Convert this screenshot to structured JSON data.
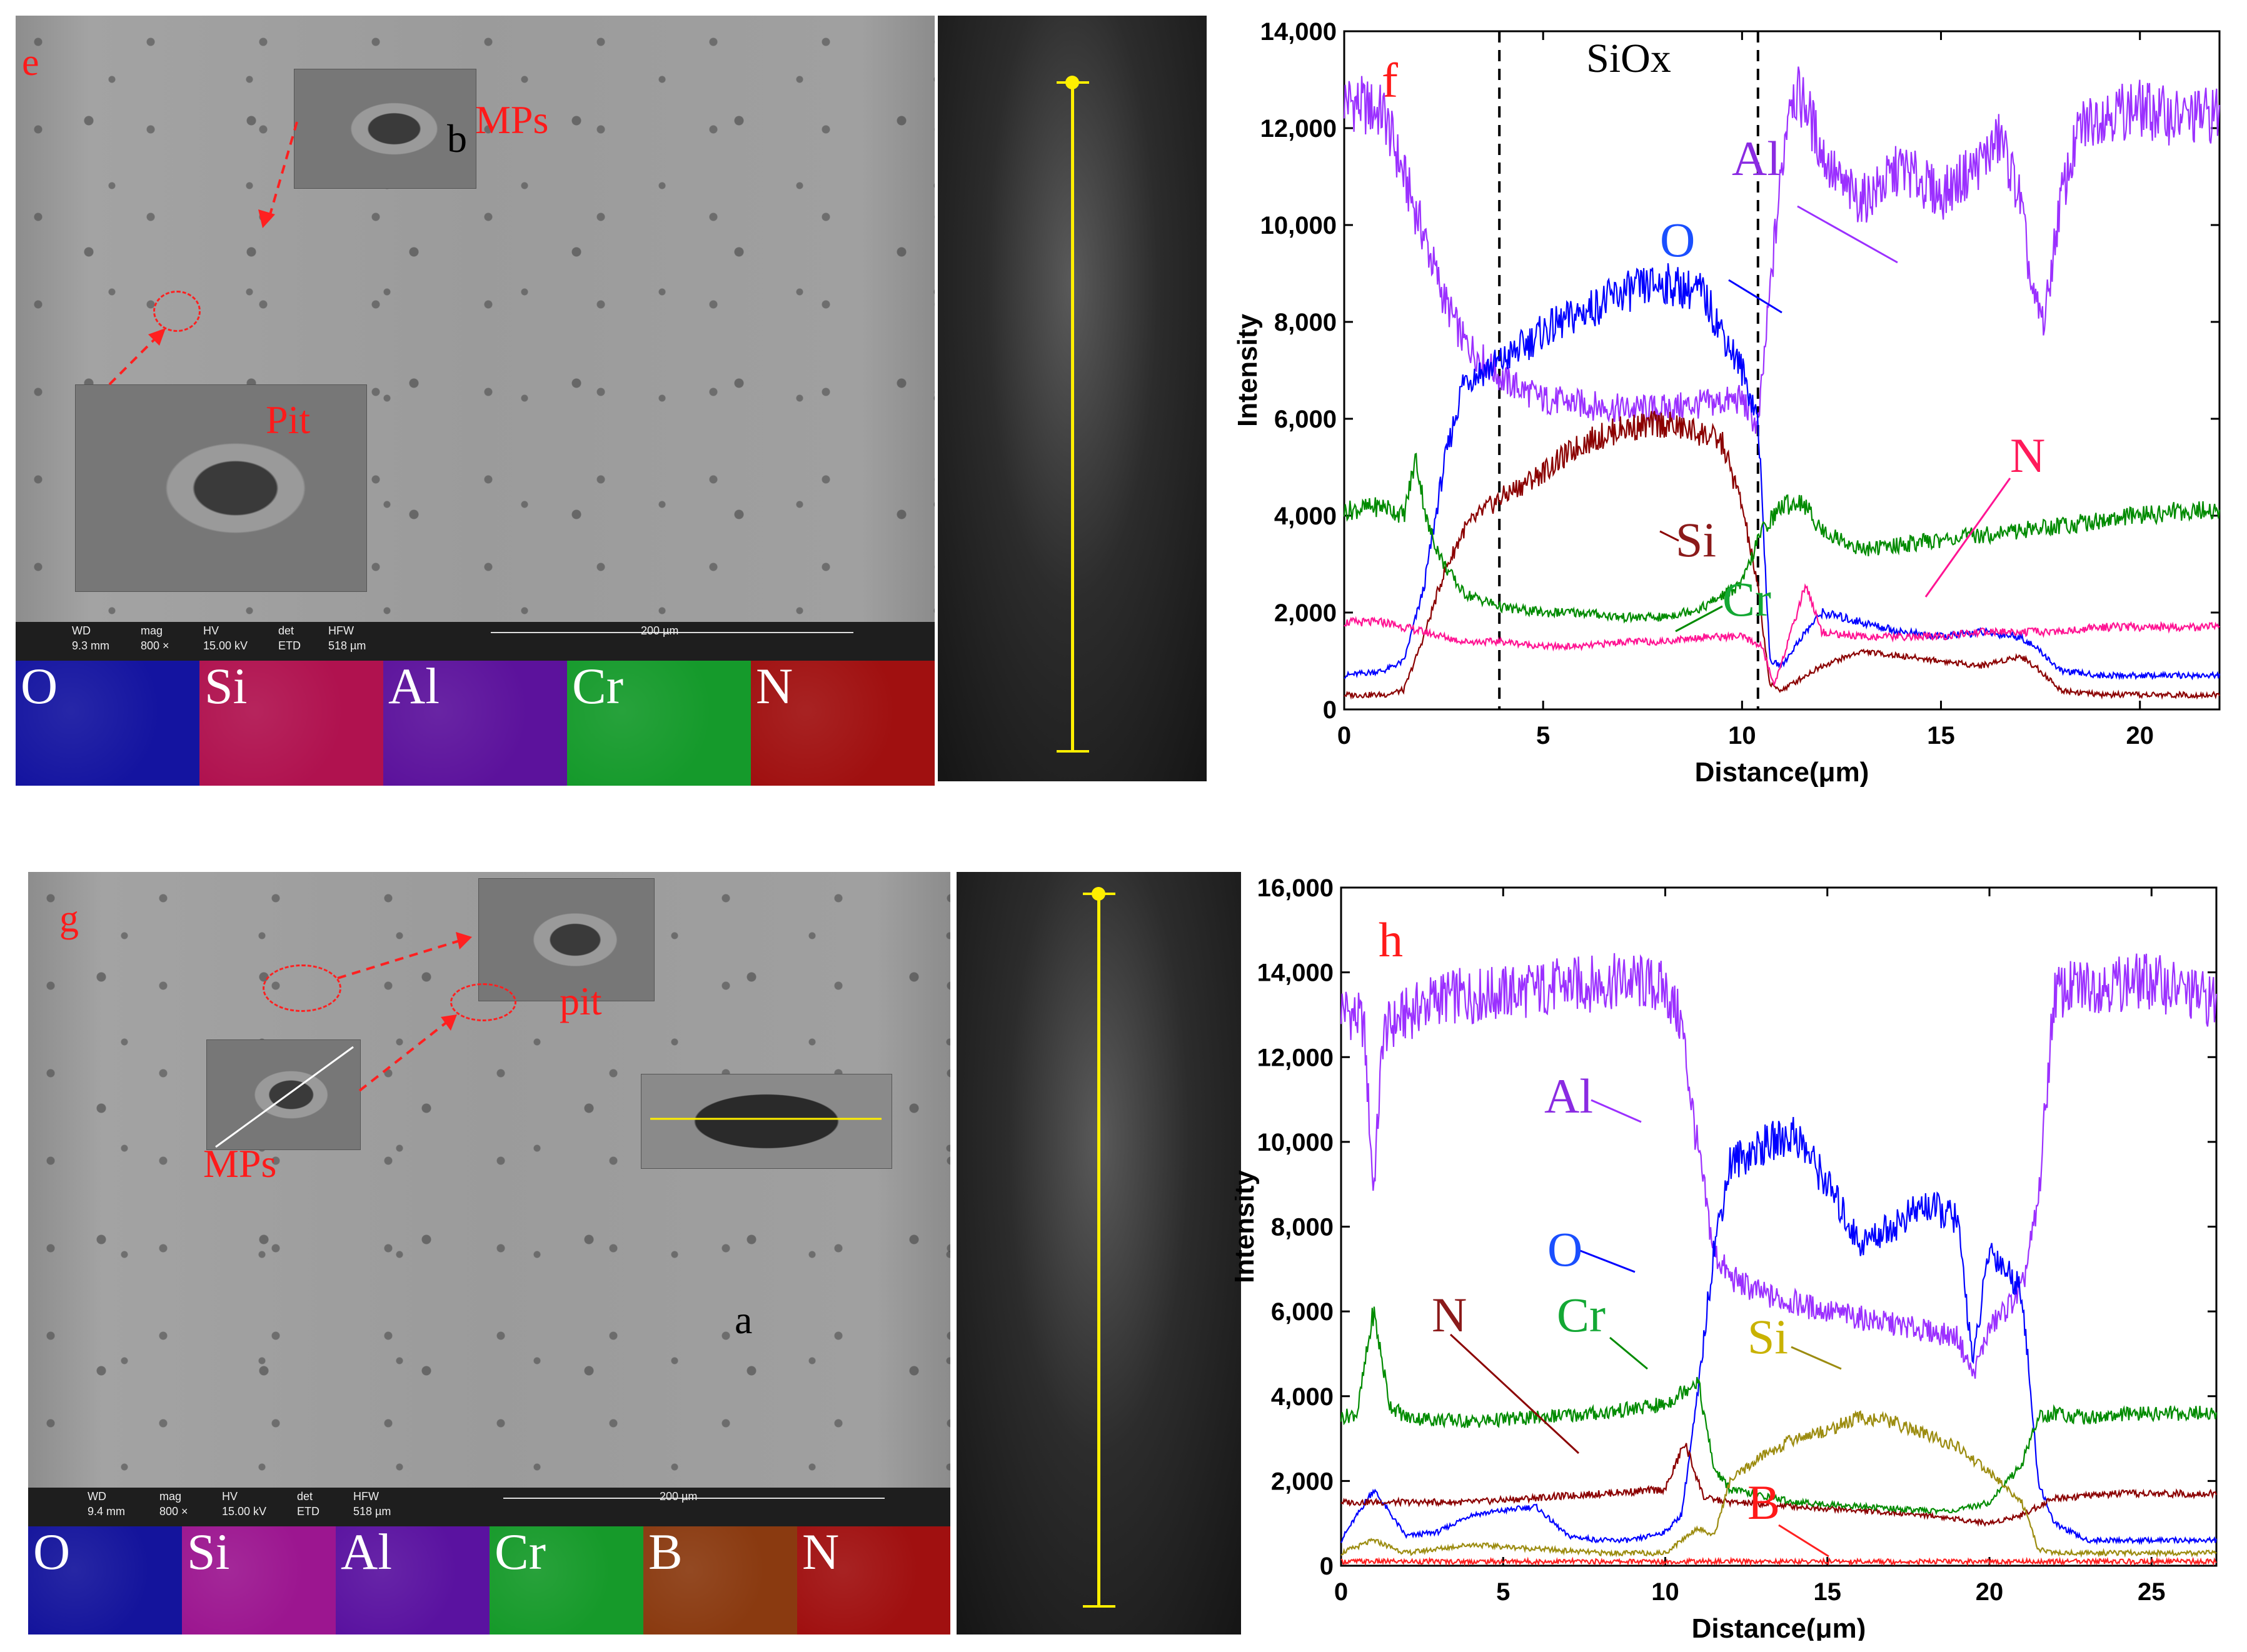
{
  "panel_e": {
    "label": "e",
    "mps_label": "MPs",
    "b_label": "b",
    "pit_label": "Pit",
    "infobar": {
      "wd_title": "WD",
      "wd_value": "9.3 mm",
      "mag_title": "mag",
      "mag_value": "800 ×",
      "hv_title": "HV",
      "hv_value": "15.00 kV",
      "det_title": "det",
      "det_value": "ETD",
      "hfw_title": "HFW",
      "hfw_value": "518 µm",
      "scale": "200 µm"
    },
    "maps": [
      {
        "element": "O",
        "color": "#1414a0"
      },
      {
        "element": "Si",
        "color": "#b0124f"
      },
      {
        "element": "Al",
        "color": "#5c129c"
      },
      {
        "element": "Cr",
        "color": "#159a2b"
      },
      {
        "element": "N",
        "color": "#a01010"
      }
    ]
  },
  "panel_g": {
    "label": "g",
    "mps_label": "MPs",
    "pit_label": "pit",
    "a_label": "a",
    "infobar": {
      "wd_title": "WD",
      "wd_value": "9.4 mm",
      "mag_title": "mag",
      "mag_value": "800 ×",
      "hv_title": "HV",
      "hv_value": "15.00 kV",
      "det_title": "det",
      "det_value": "ETD",
      "hfw_title": "HFW",
      "hfw_value": "518 µm",
      "scale": "200 µm"
    },
    "maps": [
      {
        "element": "O",
        "color": "#14149c"
      },
      {
        "element": "Si",
        "color": "#9c1690"
      },
      {
        "element": "Al",
        "color": "#5a12a0"
      },
      {
        "element": "Cr",
        "color": "#169a2a"
      },
      {
        "element": "B",
        "color": "#8a3a10"
      },
      {
        "element": "N",
        "color": "#a01010"
      }
    ]
  },
  "chart_data": [
    {
      "type": "line",
      "panel_label": "f",
      "xlabel": "Distance(μm)",
      "ylabel": "Intensity",
      "xlim": [
        0,
        22
      ],
      "ylim": [
        0,
        14000
      ],
      "xticks": [
        0,
        5,
        10,
        15,
        20
      ],
      "yticks": [
        0,
        2000,
        4000,
        6000,
        8000,
        10000,
        12000,
        14000
      ],
      "ytick_labels": [
        "0",
        "2,000",
        "4,000",
        "6,000",
        "8,000",
        "10,000",
        "12,000",
        "14,000"
      ],
      "region": {
        "label": "SiOx",
        "x_start": 3.9,
        "x_end": 10.4
      },
      "series": [
        {
          "name": "Al",
          "color": "#9b30ff",
          "label_color": "#8a2be2",
          "x": [
            0,
            1,
            1.5,
            2,
            2.5,
            3,
            4,
            5,
            6,
            7,
            8,
            9,
            10,
            10.4,
            10.8,
            11.2,
            11.6,
            12,
            12.5,
            13,
            13.5,
            14,
            15,
            16,
            16.5,
            17,
            17.3,
            17.6,
            18,
            18.5,
            19,
            20,
            21,
            22
          ],
          "values": [
            12600,
            12300,
            11000,
            9800,
            8500,
            7600,
            6800,
            6400,
            6300,
            6200,
            6200,
            6300,
            6400,
            5800,
            9500,
            12800,
            12500,
            11500,
            10800,
            10500,
            10800,
            11200,
            10600,
            11300,
            11800,
            10500,
            8500,
            8000,
            10500,
            12000,
            12300,
            12400,
            12200,
            12300
          ]
        },
        {
          "name": "O",
          "color": "#0000ff",
          "label_color": "#1a4fff",
          "x": [
            0,
            1,
            1.5,
            2,
            2.5,
            3,
            4,
            5,
            6,
            7,
            8,
            9,
            9.5,
            10,
            10.4,
            10.7,
            11,
            11.5,
            12,
            13,
            14,
            15,
            16,
            17,
            17.5,
            18,
            19,
            20,
            21,
            22
          ],
          "values": [
            700,
            800,
            1000,
            2500,
            5000,
            6800,
            7200,
            7800,
            8200,
            8600,
            8800,
            8600,
            7800,
            7000,
            6000,
            1000,
            900,
            1500,
            2000,
            1800,
            1600,
            1500,
            1600,
            1500,
            1200,
            800,
            700,
            700,
            700,
            700
          ]
        },
        {
          "name": "Si",
          "color": "#8b0000",
          "label_color": "#8b1a1a",
          "x": [
            0,
            1,
            1.5,
            2,
            2.5,
            3,
            3.5,
            4,
            5,
            6,
            7,
            8,
            9,
            9.5,
            10,
            10.4,
            10.7,
            11,
            12,
            13,
            14,
            15,
            16,
            17,
            17.5,
            18,
            19,
            20,
            21,
            22
          ],
          "values": [
            300,
            300,
            400,
            1500,
            2800,
            3700,
            4100,
            4400,
            4900,
            5500,
            5800,
            5900,
            5700,
            5500,
            4200,
            2500,
            500,
            400,
            900,
            1200,
            1100,
            1000,
            900,
            1100,
            800,
            400,
            300,
            300,
            300,
            300
          ]
        },
        {
          "name": "Cr",
          "color": "#008b00",
          "label_color": "#13a834",
          "x": [
            0,
            1,
            1.5,
            1.8,
            2.1,
            2.5,
            3,
            4,
            5,
            6,
            7,
            8,
            9,
            10,
            10.5,
            11,
            11.5,
            12,
            13,
            14,
            15,
            16,
            17,
            18,
            19,
            20,
            21,
            22
          ],
          "values": [
            4100,
            4200,
            4000,
            5200,
            3800,
            3000,
            2400,
            2100,
            2000,
            2000,
            1900,
            1900,
            2100,
            2600,
            3700,
            4200,
            4300,
            3700,
            3300,
            3400,
            3500,
            3600,
            3700,
            3800,
            3900,
            4000,
            4100,
            4100
          ]
        },
        {
          "name": "N",
          "color": "#ff1493",
          "label_color": "#ff1a5a",
          "x": [
            0,
            1,
            2,
            3,
            4,
            5,
            6,
            7,
            8,
            9,
            10,
            10.5,
            10.8,
            11.2,
            11.6,
            12,
            13,
            14,
            15,
            16,
            17,
            18,
            19,
            20,
            21,
            22
          ],
          "values": [
            1800,
            1800,
            1600,
            1400,
            1400,
            1300,
            1300,
            1400,
            1400,
            1500,
            1500,
            1300,
            500,
            1500,
            2600,
            1600,
            1500,
            1500,
            1500,
            1600,
            1600,
            1600,
            1700,
            1700,
            1700,
            1700
          ]
        }
      ]
    },
    {
      "type": "line",
      "panel_label": "h",
      "xlabel": "Distance(μm)",
      "ylabel": "Intensity",
      "xlim": [
        0,
        27
      ],
      "ylim": [
        0,
        16000
      ],
      "xticks": [
        0,
        5,
        10,
        15,
        20,
        25
      ],
      "yticks": [
        0,
        2000,
        4000,
        6000,
        8000,
        10000,
        12000,
        14000,
        16000
      ],
      "ytick_labels": [
        "0",
        "2,000",
        "4,000",
        "6,000",
        "8,000",
        "10,000",
        "12,000",
        "14,000",
        "16,000"
      ],
      "series": [
        {
          "name": "Al",
          "color": "#9b30ff",
          "label_color": "#8a2be2",
          "x": [
            0,
            0.7,
            1,
            1.3,
            2,
            3,
            5,
            7,
            9,
            10,
            10.5,
            11,
            11.5,
            12,
            13,
            15,
            17,
            19,
            19.5,
            20,
            21,
            21.5,
            22,
            23,
            25,
            27
          ],
          "values": [
            13200,
            12800,
            8800,
            12600,
            13000,
            13400,
            13500,
            13700,
            13800,
            13600,
            12800,
            9800,
            7400,
            6800,
            6400,
            6000,
            5700,
            5400,
            4500,
            5600,
            6500,
            8500,
            13500,
            13700,
            13800,
            13300
          ]
        },
        {
          "name": "O",
          "color": "#0000ff",
          "label_color": "#1a4fff",
          "x": [
            0,
            1,
            2,
            3,
            4,
            5,
            6,
            7,
            8,
            9,
            10,
            10.5,
            11,
            11.5,
            12,
            13,
            14,
            15,
            16,
            17,
            18,
            19,
            19.5,
            20,
            21,
            21.5,
            22,
            23,
            25,
            27
          ],
          "values": [
            600,
            1800,
            700,
            800,
            1200,
            1300,
            1400,
            700,
            600,
            600,
            800,
            1200,
            4000,
            7500,
            9500,
            9900,
            10200,
            9000,
            7600,
            8000,
            8500,
            8200,
            4800,
            7500,
            6500,
            2000,
            1000,
            600,
            600,
            600
          ]
        },
        {
          "name": "N",
          "color": "#8b0000",
          "label_color": "#8b1a1a",
          "x": [
            0,
            2,
            4,
            6,
            8,
            10,
            10.6,
            11.2,
            12,
            14,
            16,
            18,
            19,
            20,
            21,
            22,
            24,
            27
          ],
          "values": [
            1500,
            1500,
            1500,
            1600,
            1700,
            1800,
            2900,
            1600,
            1500,
            1400,
            1300,
            1200,
            1100,
            1000,
            1200,
            1600,
            1700,
            1700
          ]
        },
        {
          "name": "Cr",
          "color": "#008b00",
          "label_color": "#13a834",
          "x": [
            0,
            0.5,
            1,
            1.5,
            2,
            4,
            6,
            8,
            10,
            10.5,
            11,
            11.5,
            12,
            14,
            16,
            18,
            19,
            20,
            21,
            21.5,
            22,
            23,
            25,
            27
          ],
          "values": [
            3500,
            3600,
            6000,
            3800,
            3500,
            3400,
            3500,
            3600,
            3800,
            4100,
            4400,
            2300,
            1800,
            1500,
            1400,
            1300,
            1300,
            1500,
            2400,
            3500,
            3600,
            3500,
            3600,
            3600
          ]
        },
        {
          "name": "Si",
          "color": "#9c8c10",
          "label_color": "#c9b200",
          "x": [
            0,
            1,
            2,
            4,
            6,
            8,
            10,
            11,
            11.5,
            12,
            13,
            14,
            15,
            16,
            17,
            18,
            19,
            20,
            21,
            21.5,
            22,
            24,
            27
          ],
          "values": [
            300,
            600,
            300,
            500,
            400,
            300,
            300,
            900,
            700,
            2000,
            2600,
            3000,
            3200,
            3500,
            3400,
            3100,
            2800,
            2200,
            1500,
            400,
            300,
            300,
            300
          ]
        },
        {
          "name": "B",
          "color": "#ff2020",
          "label_color": "#ff1a1a",
          "x": [
            0,
            5,
            10,
            15,
            20,
            25,
            27
          ],
          "values": [
            100,
            100,
            100,
            100,
            100,
            100,
            100
          ]
        }
      ]
    }
  ]
}
